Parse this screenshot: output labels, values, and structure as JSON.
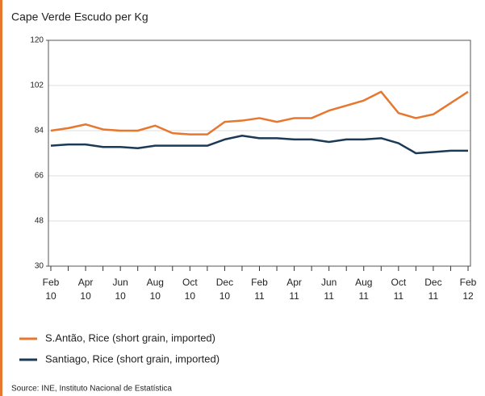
{
  "chart_data": {
    "type": "line",
    "title": "Cape Verde Escudo per Kg",
    "source": "Source: INE, Instituto Nacional de Estatística",
    "categories": [
      "Feb 10",
      null,
      "Apr 10",
      null,
      "Jun 10",
      null,
      "Aug 10",
      null,
      "Oct 10",
      null,
      "Dec 10",
      null,
      "Feb 11",
      null,
      "Apr 11",
      null,
      "Jun 11",
      null,
      "Aug 11",
      null,
      "Oct 11",
      null,
      "Dec 11",
      null,
      "Feb 12"
    ],
    "series": [
      {
        "name": "S.Antão, Rice (short grain, imported)",
        "color": "#e8772e",
        "values": [
          84,
          85,
          86.5,
          84.5,
          84,
          84,
          86,
          83,
          82.5,
          82.5,
          87.5,
          88,
          89,
          87.5,
          89,
          89,
          92,
          94,
          96,
          99.5,
          91,
          89,
          90.5,
          95,
          99.5
        ]
      },
      {
        "name": "Santiago, Rice (short grain, imported)",
        "color": "#1c3a56",
        "values": [
          78,
          78.5,
          78.5,
          77.5,
          77.5,
          77,
          78,
          78,
          78,
          78,
          80.5,
          82,
          81,
          81,
          80.5,
          80.5,
          79.5,
          80.5,
          80.5,
          81,
          79,
          75,
          75.5,
          76,
          76
        ]
      }
    ],
    "ylim": [
      30,
      120
    ],
    "yticks": [
      30,
      48,
      66,
      84,
      102,
      120
    ],
    "grid": true
  }
}
